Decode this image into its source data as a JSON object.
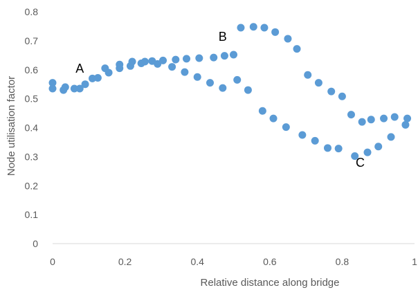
{
  "chart_data": {
    "type": "scatter",
    "title": "",
    "xlabel": "Relative distance along bridge",
    "ylabel": "Node utilisation factor",
    "xlim": [
      0,
      1
    ],
    "ylim": [
      0,
      0.8
    ],
    "x_ticks": [
      "0",
      "0.2",
      "0.4",
      "0.6",
      "0.8",
      "1"
    ],
    "y_ticks": [
      "0",
      "0.1",
      "0.2",
      "0.3",
      "0.4",
      "0.5",
      "0.6",
      "0.7",
      "0.8"
    ],
    "grid": false,
    "legend": "none",
    "marker_color": "#5B9BD5",
    "annotations": [
      {
        "text": "A",
        "x": 0.075,
        "y": 0.59
      },
      {
        "text": "B",
        "x": 0.47,
        "y": 0.7
      },
      {
        "text": "C",
        "x": 0.85,
        "y": 0.265
      }
    ],
    "series": [
      {
        "points": [
          [
            0.0,
            0.555
          ],
          [
            0.0,
            0.535
          ],
          [
            0.03,
            0.53
          ],
          [
            0.035,
            0.54
          ],
          [
            0.06,
            0.535
          ],
          [
            0.075,
            0.535
          ],
          [
            0.09,
            0.55
          ],
          [
            0.11,
            0.57
          ],
          [
            0.125,
            0.572
          ],
          [
            0.145,
            0.605
          ],
          [
            0.155,
            0.59
          ],
          [
            0.185,
            0.605
          ],
          [
            0.185,
            0.618
          ],
          [
            0.215,
            0.613
          ],
          [
            0.22,
            0.628
          ],
          [
            0.245,
            0.622
          ],
          [
            0.255,
            0.628
          ],
          [
            0.275,
            0.63
          ],
          [
            0.29,
            0.62
          ],
          [
            0.305,
            0.632
          ],
          [
            0.33,
            0.61
          ],
          [
            0.34,
            0.635
          ],
          [
            0.365,
            0.592
          ],
          [
            0.37,
            0.638
          ],
          [
            0.4,
            0.575
          ],
          [
            0.405,
            0.64
          ],
          [
            0.435,
            0.555
          ],
          [
            0.445,
            0.642
          ],
          [
            0.47,
            0.537
          ],
          [
            0.475,
            0.648
          ],
          [
            0.5,
            0.652
          ],
          [
            0.51,
            0.565
          ],
          [
            0.52,
            0.745
          ],
          [
            0.54,
            0.53
          ],
          [
            0.555,
            0.748
          ],
          [
            0.58,
            0.458
          ],
          [
            0.585,
            0.745
          ],
          [
            0.61,
            0.432
          ],
          [
            0.615,
            0.73
          ],
          [
            0.645,
            0.402
          ],
          [
            0.65,
            0.707
          ],
          [
            0.675,
            0.672
          ],
          [
            0.69,
            0.375
          ],
          [
            0.705,
            0.582
          ],
          [
            0.725,
            0.355
          ],
          [
            0.735,
            0.555
          ],
          [
            0.76,
            0.33
          ],
          [
            0.77,
            0.525
          ],
          [
            0.79,
            0.328
          ],
          [
            0.8,
            0.508
          ],
          [
            0.825,
            0.445
          ],
          [
            0.835,
            0.302
          ],
          [
            0.855,
            0.42
          ],
          [
            0.87,
            0.315
          ],
          [
            0.88,
            0.428
          ],
          [
            0.9,
            0.335
          ],
          [
            0.915,
            0.432
          ],
          [
            0.935,
            0.368
          ],
          [
            0.945,
            0.437
          ],
          [
            0.975,
            0.41
          ],
          [
            0.98,
            0.432
          ]
        ]
      }
    ]
  }
}
